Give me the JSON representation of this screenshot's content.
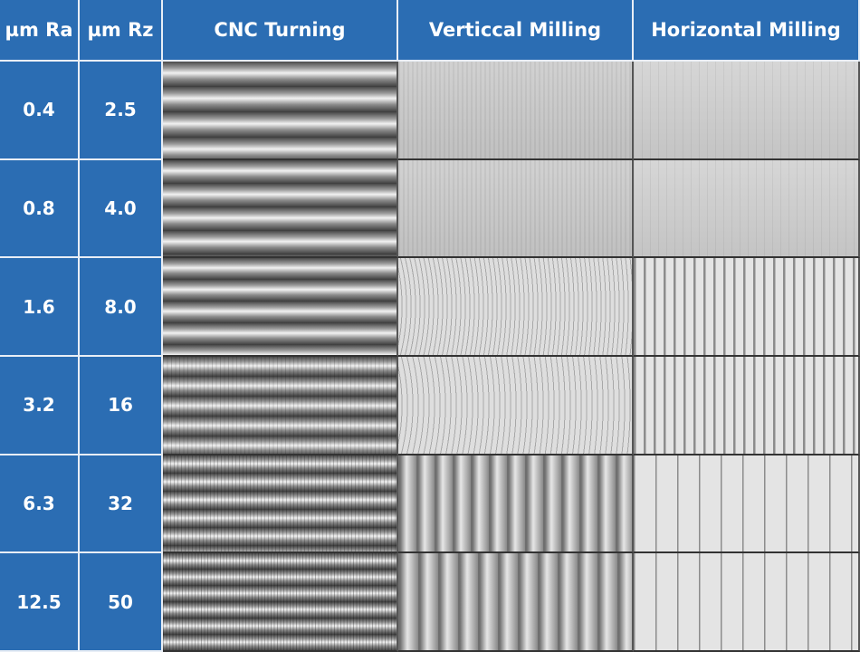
{
  "table": {
    "header": [
      "µm Ra",
      "µm Rz",
      "CNC Turning",
      "Verticcal Milling",
      "Horizontal Milling"
    ],
    "rows": [
      [
        "0.4",
        "2.5"
      ],
      [
        "0.8",
        "4.0"
      ],
      [
        "1.6",
        "8.0"
      ],
      [
        "3.2",
        "16"
      ],
      [
        "6.3",
        "32"
      ],
      [
        "12.5",
        "50"
      ]
    ]
  }
}
